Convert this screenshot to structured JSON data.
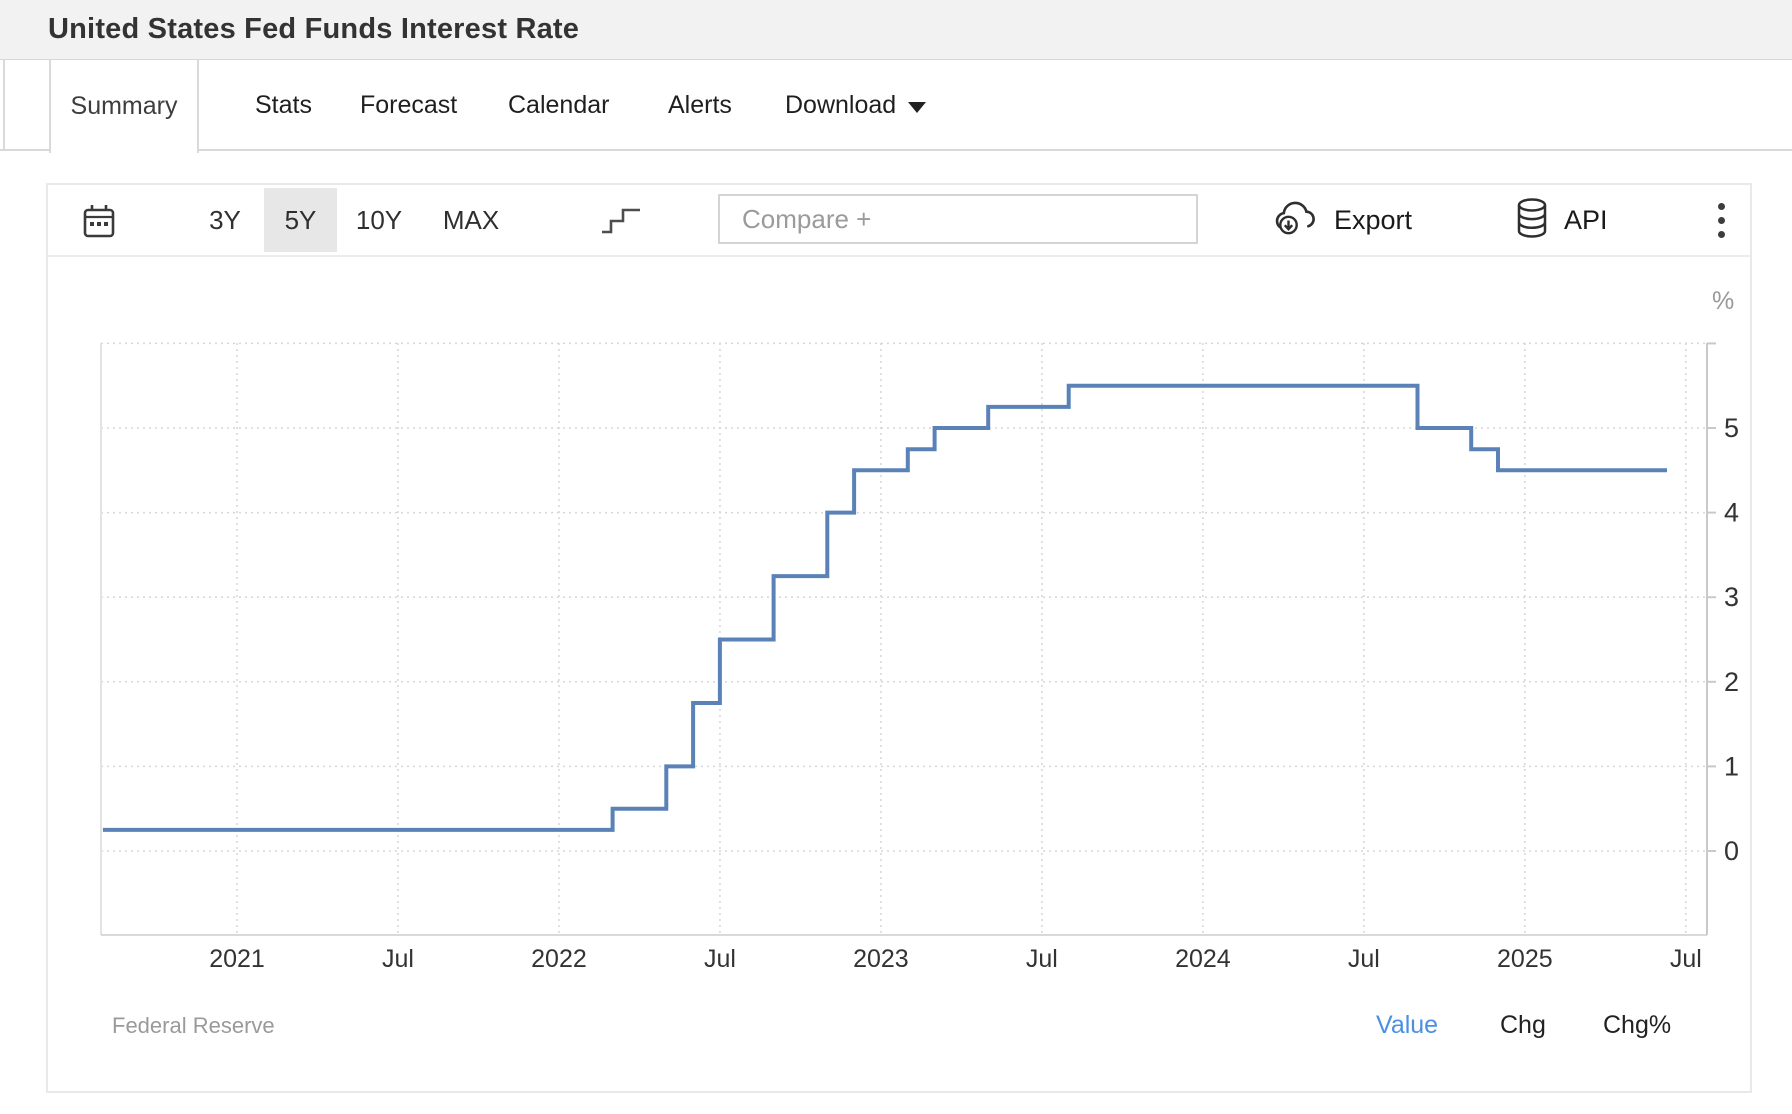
{
  "page": {
    "title": "United States Fed Funds Interest Rate"
  },
  "tabs": {
    "items": [
      {
        "label": "Summary",
        "active": true,
        "has_caret": false
      },
      {
        "label": "Stats",
        "active": false,
        "has_caret": false
      },
      {
        "label": "Forecast",
        "active": false,
        "has_caret": false
      },
      {
        "label": "Calendar",
        "active": false,
        "has_caret": false
      },
      {
        "label": "Alerts",
        "active": false,
        "has_caret": false
      },
      {
        "label": "Download",
        "active": false,
        "has_caret": true
      }
    ]
  },
  "toolbar": {
    "ranges": [
      {
        "label": "3Y",
        "active": false
      },
      {
        "label": "5Y",
        "active": true
      },
      {
        "label": "10Y",
        "active": false
      },
      {
        "label": "MAX",
        "active": false
      }
    ],
    "compare_placeholder": "Compare +",
    "export_label": "Export",
    "api_label": "API",
    "icons": [
      "calendar-icon",
      "step-line-icon",
      "cloud-download-icon",
      "database-icon",
      "kebab-menu-icon"
    ]
  },
  "chart_data": {
    "type": "line",
    "step": true,
    "title": "United States Fed Funds Interest Rate",
    "xlabel": "",
    "ylabel": "%",
    "ylim": [
      -1,
      6
    ],
    "y_ticks": [
      0,
      1,
      2,
      3,
      4,
      5
    ],
    "y_gridlines": [
      0,
      1,
      2,
      3,
      4,
      5,
      6
    ],
    "grid": "dotted",
    "legend": false,
    "x_ticks": [
      {
        "label": "2021",
        "date": "2021-01"
      },
      {
        "label": "Jul",
        "date": "2021-07"
      },
      {
        "label": "2022",
        "date": "2022-01"
      },
      {
        "label": "Jul",
        "date": "2022-07"
      },
      {
        "label": "2023",
        "date": "2023-01"
      },
      {
        "label": "Jul",
        "date": "2023-07"
      },
      {
        "label": "2024",
        "date": "2024-01"
      },
      {
        "label": "Jul",
        "date": "2024-07"
      },
      {
        "label": "2025",
        "date": "2025-01"
      },
      {
        "label": "Jul",
        "date": "2025-07"
      }
    ],
    "series": [
      {
        "name": "Fed Funds Interest Rate",
        "color": "#5b82b6",
        "points": [
          [
            "2020-08",
            0.25
          ],
          [
            "2022-03",
            0.5
          ],
          [
            "2022-05",
            1.0
          ],
          [
            "2022-06",
            1.75
          ],
          [
            "2022-07",
            2.5
          ],
          [
            "2022-09",
            3.25
          ],
          [
            "2022-11",
            4.0
          ],
          [
            "2022-12",
            4.5
          ],
          [
            "2023-02",
            4.75
          ],
          [
            "2023-03",
            5.0
          ],
          [
            "2023-05",
            5.25
          ],
          [
            "2023-08",
            5.5
          ],
          [
            "2024-09",
            5.0
          ],
          [
            "2024-11",
            4.75
          ],
          [
            "2024-12",
            4.5
          ],
          [
            "2025-06",
            4.5
          ]
        ]
      }
    ]
  },
  "footer": {
    "source": "Federal Reserve",
    "links": [
      {
        "label": "Value",
        "active": true,
        "color": "#4a90e2"
      },
      {
        "label": "Chg",
        "active": false,
        "color": "#222222"
      },
      {
        "label": "Chg%",
        "active": false,
        "color": "#222222"
      }
    ]
  }
}
